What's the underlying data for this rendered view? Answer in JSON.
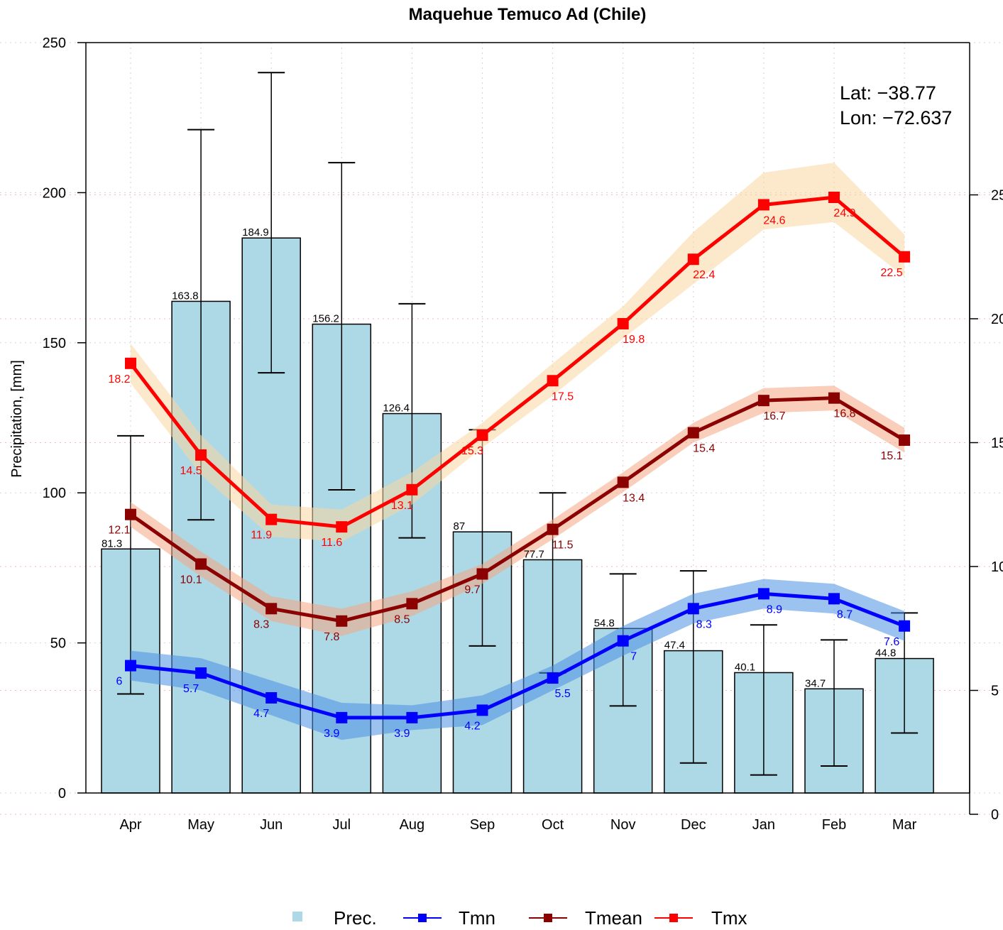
{
  "chart_data": {
    "type": "bar",
    "title": "Maquehue Temuco Ad (Chile)",
    "ylabel": "Precipitation, [mm]",
    "ylim": [
      0,
      250
    ],
    "y2lim": [
      0,
      30
    ],
    "y_ticks": [
      "0",
      "50",
      "100",
      "150",
      "200",
      "250"
    ],
    "y2_ticks": [
      "0",
      "5",
      "10",
      "15",
      "20",
      "25"
    ],
    "annotation": [
      "Lat: −38.77",
      "Lon: −72.637"
    ],
    "categories": [
      "Apr",
      "May",
      "Jun",
      "Jul",
      "Aug",
      "Sep",
      "Oct",
      "Nov",
      "Dec",
      "Jan",
      "Feb",
      "Mar"
    ],
    "precipitation": {
      "name": "Prec.",
      "values": [
        81.3,
        163.8,
        184.9,
        156.2,
        126.4,
        87,
        77.7,
        54.8,
        47.4,
        40.1,
        34.7,
        44.8
      ],
      "labels": [
        "81.3",
        "163.8",
        "184.9",
        "156.2",
        "126.4",
        "87",
        "77.7",
        "54.8",
        "47.4",
        "40.1",
        "34.7",
        "44.8"
      ],
      "error_low": [
        33,
        91,
        140,
        101,
        85,
        49,
        40,
        29,
        10,
        6,
        9,
        20
      ],
      "error_high": [
        119,
        221,
        240,
        210,
        163,
        121,
        100,
        73,
        74,
        56,
        51,
        60
      ],
      "color": "#ADD8E6"
    },
    "series": [
      {
        "name": "Tmn",
        "values": [
          6.0,
          5.7,
          4.7,
          3.9,
          3.9,
          4.2,
          5.5,
          7.0,
          8.3,
          8.9,
          8.7,
          7.6
        ],
        "labels": [
          "6",
          "5.7",
          "4.7",
          "3.9",
          "3.9",
          "4.2",
          "5.5",
          "7",
          "8.3",
          "8.9",
          "8.7",
          "7.6"
        ],
        "band_low": [
          5.4,
          5.0,
          4.0,
          3.0,
          3.4,
          3.6,
          5.0,
          6.4,
          7.7,
          8.3,
          8.1,
          7.0
        ],
        "band_high": [
          6.6,
          6.3,
          5.4,
          4.5,
          4.4,
          4.8,
          6.0,
          7.6,
          8.9,
          9.5,
          9.3,
          8.2
        ],
        "color": "#0000FF",
        "band_color": "#4A90E2"
      },
      {
        "name": "Tmean",
        "values": [
          12.1,
          10.1,
          8.3,
          7.8,
          8.5,
          9.7,
          11.5,
          13.4,
          15.4,
          16.7,
          16.8,
          15.1
        ],
        "labels": [
          "12.1",
          "10.1",
          "8.3",
          "7.8",
          "8.5",
          "9.7",
          "11.5",
          "13.4",
          "15.4",
          "16.7",
          "16.8",
          "15.1"
        ],
        "band_low": [
          11.6,
          9.6,
          7.8,
          7.2,
          8.0,
          9.3,
          11.1,
          13.0,
          15.0,
          16.2,
          16.3,
          14.6
        ],
        "band_high": [
          12.6,
          10.6,
          8.8,
          8.3,
          9.0,
          10.1,
          11.9,
          13.8,
          15.8,
          17.2,
          17.3,
          15.6
        ],
        "color": "#8B0000",
        "band_color": "#F4A582"
      },
      {
        "name": "Tmx",
        "values": [
          18.2,
          14.5,
          11.9,
          11.6,
          13.1,
          15.3,
          17.5,
          19.8,
          22.4,
          24.6,
          24.9,
          22.5
        ],
        "labels": [
          "18.2",
          "14.5",
          "11.9",
          "11.6",
          "13.1",
          "15.3",
          "17.5",
          "19.8",
          "22.4",
          "24.6",
          "24.9",
          "22.5"
        ],
        "band_low": [
          17.4,
          13.7,
          11.2,
          11.0,
          12.5,
          14.8,
          16.9,
          19.2,
          21.4,
          23.6,
          23.9,
          21.7
        ],
        "band_high": [
          19.0,
          15.3,
          12.5,
          12.3,
          13.8,
          15.8,
          18.2,
          20.5,
          23.5,
          25.9,
          26.3,
          23.4
        ],
        "color": "#FF0000",
        "band_color": "#FAD7A0"
      }
    ],
    "legend": [
      "Prec.",
      "Tmn",
      "Tmean",
      "Tmx"
    ],
    "legend_position": "bottom",
    "grid": true
  }
}
